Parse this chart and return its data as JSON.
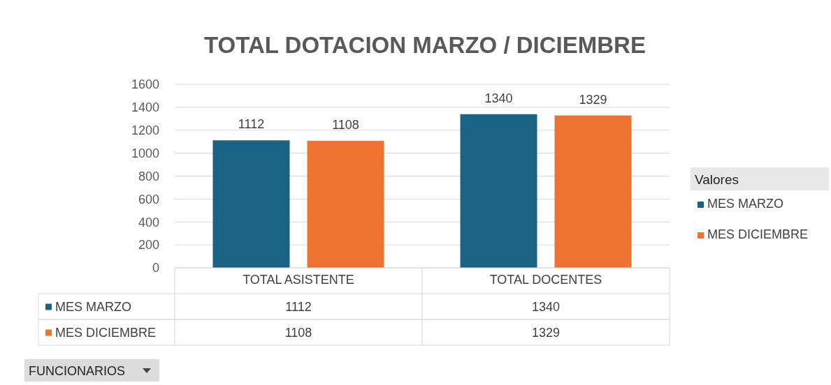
{
  "chart_data": [
    {
      "type": "bar",
      "title": "TOTAL DOTACION MARZO / DICIEMBRE",
      "legend_title": "Valores",
      "categories": [
        "TOTAL ASISTENTE",
        "TOTAL DOCENTES"
      ],
      "series": [
        {
          "name": "MES MARZO",
          "color": "#1b6384",
          "values": [
            1112,
            1340
          ],
          "value_labels": [
            "1112",
            "1340"
          ]
        },
        {
          "name": "MES DICIEMBRE",
          "color": "#ec7332",
          "values": [
            1108,
            1329
          ],
          "value_labels": [
            "1108",
            "1329"
          ]
        }
      ],
      "ylim": [
        0,
        1600
      ],
      "yticks": [
        0,
        200,
        400,
        600,
        800,
        1000,
        1200,
        1400,
        1600
      ],
      "grid": "y",
      "legend": "right",
      "annotations": [
        "FUNCIONARIOS"
      ]
    },
    {
      "type": "other",
      "annotations": [
        "MES MARZO",
        "1112",
        "1340",
        "MES DICIEMBRE",
        "1108",
        "1329"
      ]
    }
  ]
}
